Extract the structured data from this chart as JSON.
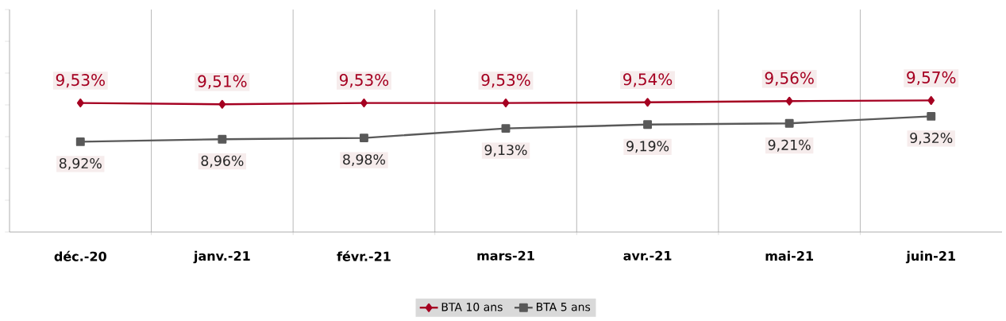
{
  "chart_data": {
    "type": "line",
    "categories": [
      "déc.-20",
      "janv.-21",
      "févr.-21",
      "mars-21",
      "avr.-21",
      "mai-21",
      "juin-21"
    ],
    "series": [
      {
        "name": "BTA 10 ans",
        "color": "#a50021",
        "marker": "diamond",
        "values": [
          9.53,
          9.51,
          9.53,
          9.53,
          9.54,
          9.56,
          9.57
        ],
        "value_labels": [
          "9,53%",
          "9,51%",
          "9,53%",
          "9,53%",
          "9,54%",
          "9,56%",
          "9,57%"
        ]
      },
      {
        "name": "BTA 5 ans",
        "color": "#595959",
        "marker": "square",
        "values": [
          8.92,
          8.96,
          8.98,
          9.13,
          9.19,
          9.21,
          9.32
        ],
        "value_labels": [
          "8,92%",
          "8,96%",
          "8,98%",
          "9,13%",
          "9,19%",
          "9,21%",
          "9,32%"
        ]
      }
    ],
    "ylim": [
      7.5,
      11
    ],
    "yticks": [
      {
        "value": 7.5,
        "label": null
      },
      {
        "value": 8,
        "label": null
      },
      {
        "value": 8.5,
        "label": null
      },
      {
        "value": 9,
        "label": null
      },
      {
        "value": 9.5,
        "label": null
      },
      {
        "value": 10,
        "label": null
      },
      {
        "value": 10.5,
        "label": null
      },
      {
        "value": 11,
        "label": null
      }
    ],
    "tick_labels": "x",
    "grid": "x",
    "legend": "bottom"
  }
}
